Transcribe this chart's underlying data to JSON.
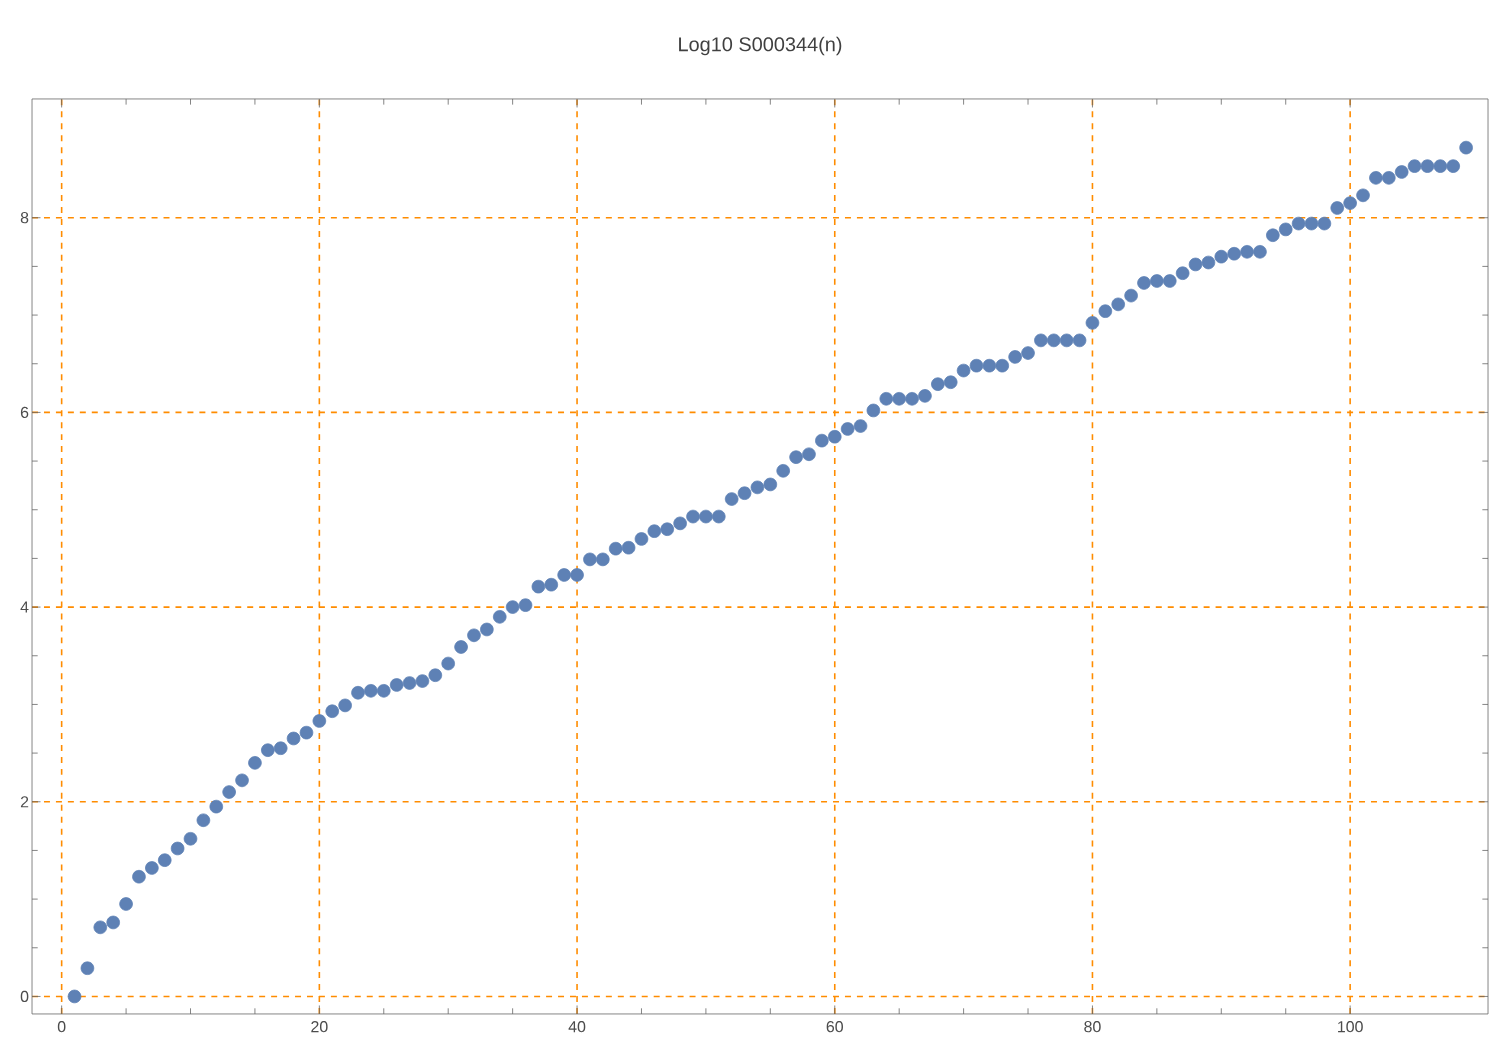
{
  "chart_data": {
    "type": "scatter",
    "title": "Log10 S000344(n)",
    "x": [
      1,
      2,
      3,
      4,
      5,
      6,
      7,
      8,
      9,
      10,
      11,
      12,
      13,
      14,
      15,
      16,
      17,
      18,
      19,
      20,
      21,
      22,
      23,
      24,
      25,
      26,
      27,
      28,
      29,
      30,
      31,
      32,
      33,
      34,
      35,
      36,
      37,
      38,
      39,
      40,
      41,
      42,
      43,
      44,
      45,
      46,
      47,
      48,
      49,
      50,
      51,
      52,
      53,
      54,
      55,
      56,
      57,
      58,
      59,
      60,
      61,
      62,
      63,
      64,
      65,
      66,
      67,
      68,
      69,
      70,
      71,
      72,
      73,
      74,
      75,
      76,
      77,
      78,
      79,
      80,
      81,
      82,
      83,
      84,
      85,
      86,
      87,
      88,
      89,
      90,
      91,
      92,
      93,
      94,
      95,
      96,
      97,
      98,
      99,
      100,
      101,
      102,
      103,
      104,
      105,
      106,
      107,
      108,
      109
    ],
    "values": [
      0,
      0.29,
      0.71,
      0.76,
      0.95,
      1.23,
      1.32,
      1.4,
      1.52,
      1.62,
      1.81,
      1.95,
      2.1,
      2.22,
      2.4,
      2.53,
      2.55,
      2.65,
      2.71,
      2.83,
      2.93,
      2.99,
      3.12,
      3.14,
      3.14,
      3.2,
      3.22,
      3.24,
      3.3,
      3.42,
      3.59,
      3.71,
      3.77,
      3.9,
      4.0,
      4.02,
      4.21,
      4.23,
      4.33,
      4.33,
      4.49,
      4.49,
      4.6,
      4.61,
      4.7,
      4.78,
      4.8,
      4.86,
      4.93,
      4.93,
      4.93,
      5.11,
      5.17,
      5.23,
      5.26,
      5.4,
      5.54,
      5.57,
      5.71,
      5.75,
      5.83,
      5.86,
      6.02,
      6.14,
      6.14,
      6.14,
      6.17,
      6.29,
      6.31,
      6.43,
      6.48,
      6.48,
      6.48,
      6.57,
      6.61,
      6.74,
      6.74,
      6.74,
      6.74,
      6.92,
      7.04,
      7.11,
      7.2,
      7.33,
      7.35,
      7.35,
      7.43,
      7.52,
      7.54,
      7.6,
      7.63,
      7.65,
      7.65,
      7.82,
      7.88,
      7.94,
      7.94,
      7.94,
      8.1,
      8.15,
      8.23,
      8.41,
      8.41,
      8.47,
      8.53,
      8.53,
      8.53,
      8.53,
      8.72
    ],
    "color": "#5e81b5",
    "xlim": [
      -2.3,
      110.7
    ],
    "ylim": [
      -0.18,
      9.22
    ],
    "xticks": [
      0,
      20,
      40,
      60,
      80,
      100
    ],
    "yticks": [
      0,
      2,
      4,
      6,
      8
    ],
    "grid": true
  }
}
